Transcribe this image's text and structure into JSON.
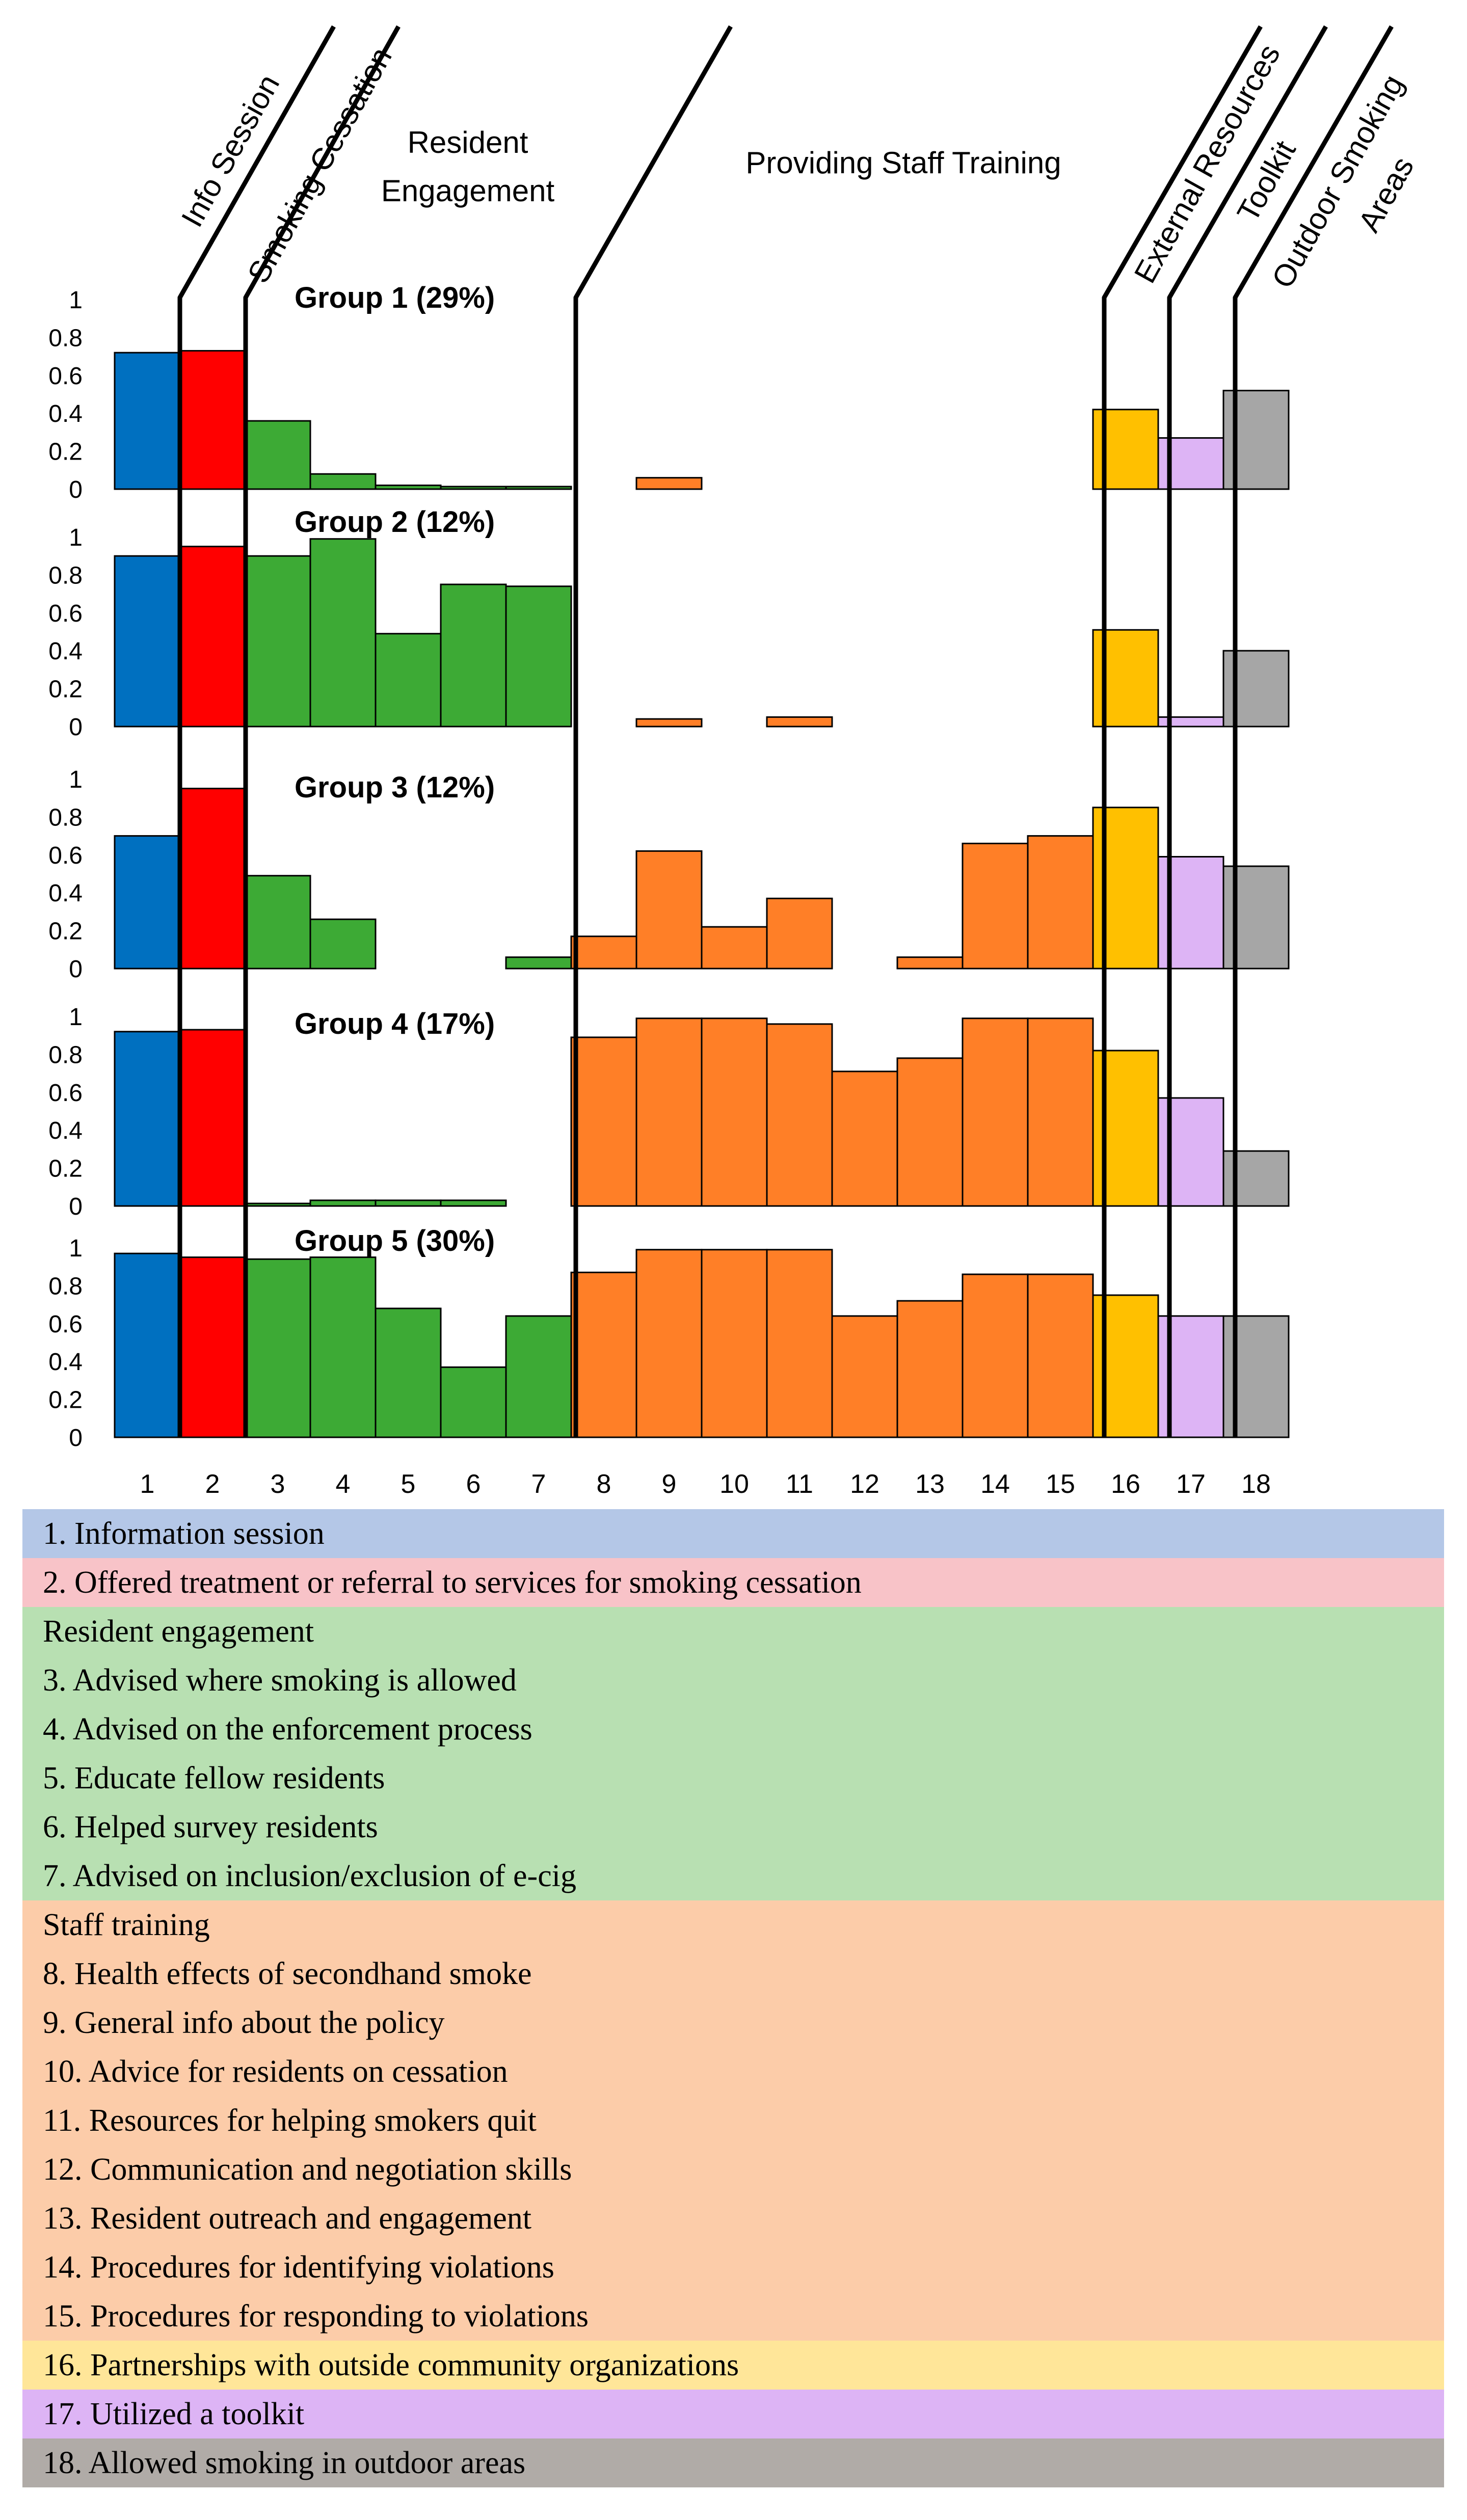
{
  "chart_data": {
    "type": "bar",
    "categories": [
      "1",
      "2",
      "3",
      "4",
      "5",
      "6",
      "7",
      "8",
      "9",
      "10",
      "11",
      "12",
      "13",
      "14",
      "15",
      "16",
      "17",
      "18"
    ],
    "yticks": [
      "1",
      "0.8",
      "0.6",
      "0.4",
      "0.2",
      "0"
    ],
    "ylim": [
      0,
      1
    ],
    "section_headers": [
      "Info Session",
      "Smoking Cessation",
      "Resident Engagement",
      "Providing Staff Training",
      "External Resources",
      "Toolkit",
      "Outdoor Smoking Areas"
    ],
    "category_colors": {
      "info": "#0070C0",
      "cessation": "#FF0000",
      "resident": "#3DAA35",
      "staff": "#FF7F27",
      "external": "#FFC000",
      "toolkit": "#DDB4F5",
      "outdoor": "#A6A6A6"
    },
    "series": [
      {
        "name": "Group 1 (29%)",
        "values": [
          0.72,
          0.73,
          0.36,
          0.08,
          0.02,
          0.01,
          0.01,
          0,
          0.06,
          0,
          0,
          0,
          0,
          0,
          0,
          0.42,
          0.27,
          0.52
        ]
      },
      {
        "name": "Group 2 (12%)",
        "values": [
          0.9,
          0.95,
          0.9,
          0.99,
          0.49,
          0.75,
          0.74,
          0,
          0.04,
          0,
          0.05,
          0,
          0,
          0,
          0,
          0.51,
          0.05,
          0.4
        ]
      },
      {
        "name": "Group 3 (12%)",
        "values": [
          0.7,
          0.95,
          0.49,
          0.26,
          0,
          0,
          0.06,
          0.17,
          0.62,
          0.22,
          0.37,
          0,
          0.06,
          0.66,
          0.7,
          0.85,
          0.59,
          0.54
        ]
      },
      {
        "name": "Group 4 (17%)",
        "values": [
          0.92,
          0.93,
          0.01,
          0.03,
          0.03,
          0.03,
          0,
          0.89,
          0.99,
          0.99,
          0.96,
          0.71,
          0.78,
          0.99,
          0.99,
          0.82,
          0.57,
          0.29
        ]
      },
      {
        "name": "Group 5 (30%)",
        "values": [
          0.97,
          0.95,
          0.94,
          0.95,
          0.68,
          0.37,
          0.64,
          0.87,
          0.99,
          0.99,
          0.99,
          0.64,
          0.72,
          0.86,
          0.86,
          0.75,
          0.64,
          0.64
        ]
      }
    ]
  },
  "legend": [
    {
      "text": "1. Information session",
      "bg": "#B4C7E7"
    },
    {
      "text": "2. Offered treatment or referral to services for smoking cessation",
      "bg": "#F8C3C8"
    },
    {
      "text": "Resident engagement",
      "bg": "#B8E0B2"
    },
    {
      "text": "3. Advised where smoking is allowed",
      "bg": "#B8E0B2"
    },
    {
      "text": "4. Advised on the enforcement process",
      "bg": "#B8E0B2"
    },
    {
      "text": "5. Educate fellow residents",
      "bg": "#B8E0B2"
    },
    {
      "text": "6. Helped survey residents",
      "bg": "#B8E0B2"
    },
    {
      "text": "7. Advised on inclusion/exclusion of e-cig",
      "bg": "#B8E0B2"
    },
    {
      "text": "Staff training",
      "bg": "#FCCCA9"
    },
    {
      "text": "8. Health effects of secondhand smoke",
      "bg": "#FCCCA9"
    },
    {
      "text": "9. General info about the policy",
      "bg": "#FCCCA9"
    },
    {
      "text": "10. Advice for residents on cessation",
      "bg": "#FCCCA9"
    },
    {
      "text": "11. Resources for helping smokers quit",
      "bg": "#FCCCA9"
    },
    {
      "text": "12. Communication and negotiation skills",
      "bg": "#FCCCA9"
    },
    {
      "text": "13. Resident outreach and engagement",
      "bg": "#FCCCA9"
    },
    {
      "text": "14. Procedures for identifying violations",
      "bg": "#FCCCA9"
    },
    {
      "text": "15. Procedures for responding to violations",
      "bg": "#FCCCA9"
    },
    {
      "text": "16. Partnerships with outside community organizations",
      "bg": "#FFE699"
    },
    {
      "text": "17. Utilized a toolkit",
      "bg": "#DDB4F5"
    },
    {
      "text": "18. Allowed smoking in outdoor areas",
      "bg": "#B0ABA7"
    }
  ]
}
